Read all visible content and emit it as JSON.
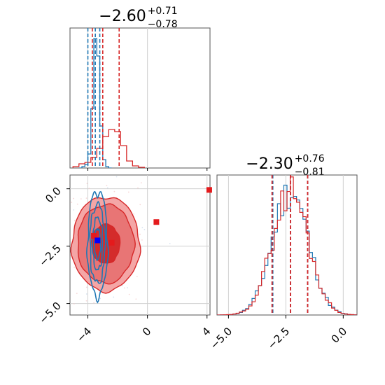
{
  "chart_data": [
    {
      "type": "histogram",
      "panel": "top-left",
      "title": {
        "base": "−2.60",
        "sup": "+0.71",
        "sub": "−0.78"
      },
      "xlim": [
        -5.2,
        4.2
      ],
      "series": [
        {
          "name": "",
          "color": "#1f77b4",
          "bins": [
            -4.6,
            -4.4,
            -4.2,
            -4.0,
            -3.8,
            -3.6,
            -3.4,
            -3.2,
            -3.0,
            -2.8,
            -2.6,
            -2.4
          ],
          "counts": [
            0,
            2,
            5,
            20,
            85,
            185,
            160,
            60,
            12,
            2,
            0
          ]
        },
        {
          "name": "",
          "color": "#d62728",
          "bins": [
            -5.0,
            -4.6,
            -4.2,
            -3.8,
            -3.4,
            -3.0,
            -2.6,
            -2.2,
            -1.8,
            -1.4,
            -1.0,
            -0.6,
            -0.2
          ],
          "counts": [
            2,
            6,
            8,
            15,
            28,
            45,
            55,
            52,
            32,
            10,
            3,
            1
          ]
        }
      ],
      "quantile_lines": [
        {
          "x": -4.0,
          "color": "#1f77b4"
        },
        {
          "x": -3.5,
          "color": "#1f77b4"
        },
        {
          "x": -3.2,
          "color": "#1f77b4"
        },
        {
          "x": -3.7,
          "color": "#d62728"
        },
        {
          "x": -3.0,
          "color": "#d62728"
        },
        {
          "x": -1.9,
          "color": "#d62728"
        }
      ]
    },
    {
      "type": "contour-scatter",
      "panel": "bottom-left",
      "xlim": [
        -5.2,
        4.2
      ],
      "ylim": [
        -5.5,
        0.6
      ],
      "x_ticks": [
        -4,
        0,
        4
      ],
      "x_tick_labels": [
        "−4",
        "0",
        "4"
      ],
      "y_ticks": [
        0.0,
        -2.5,
        -5.0
      ],
      "y_tick_labels": [
        "0.0",
        "−2.5",
        "−5.0"
      ],
      "red_contour": {
        "center": [
          -2.8,
          -2.4
        ],
        "sd": [
          1.0,
          0.95
        ],
        "levels": [
          1.0,
          2.0,
          2.4
        ]
      },
      "blue_contour": {
        "center": [
          -3.35,
          -2.4
        ],
        "sd": [
          0.28,
          1.0
        ]
      },
      "markers": [
        {
          "x": 0.6,
          "y": -1.45,
          "color": "#e41a1c"
        },
        {
          "x": -3.6,
          "y": -2.05,
          "color": "#e41a1c"
        },
        {
          "x": -2.4,
          "y": -2.35,
          "color": "#e41a1c"
        },
        {
          "x": -3.35,
          "y": -2.25,
          "color": "#0000ff"
        },
        {
          "x": 4.15,
          "y": -0.05,
          "color": "#e41a1c"
        }
      ]
    },
    {
      "type": "histogram",
      "panel": "bottom-right",
      "title": {
        "base": "−2.30",
        "sup": "+0.76",
        "sub": "−0.81"
      },
      "xlim": [
        -5.5,
        0.6
      ],
      "x_ticks": [
        -5.0,
        -2.5,
        0.0
      ],
      "x_tick_labels": [
        "−5.0",
        "−2.5",
        "0.0"
      ],
      "series": [
        {
          "name": "",
          "color": "#1f77b4"
        },
        {
          "name": "",
          "color": "#d62728"
        }
      ],
      "quantile_lines": [
        {
          "x": -3.07,
          "color": "#1f77b4"
        },
        {
          "x": -2.3,
          "color": "#1f77b4"
        },
        {
          "x": -1.55,
          "color": "#1f77b4"
        },
        {
          "x": -3.1,
          "color": "#d62728"
        },
        {
          "x": -2.3,
          "color": "#d62728"
        },
        {
          "x": -1.55,
          "color": "#d62728"
        }
      ],
      "distribution": {
        "center": -2.3,
        "sd": 0.78
      }
    }
  ]
}
